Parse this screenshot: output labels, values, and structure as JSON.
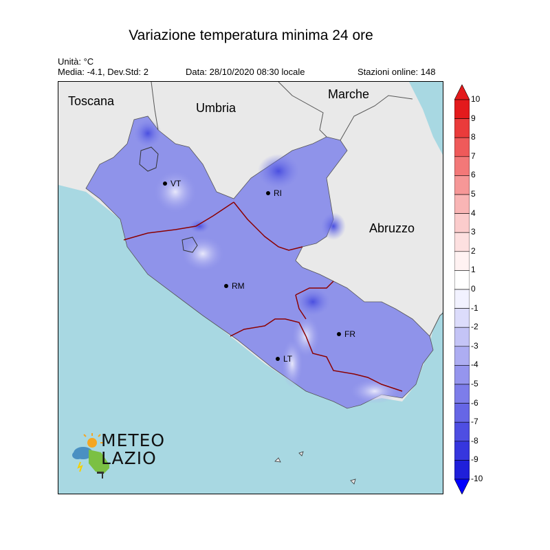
{
  "title": "Variazione temperatura minima 24 ore",
  "unit": "Unità: °C",
  "stats": "Media: -4.1, Dev.Std: 2",
  "date": "Data: 28/10/2020 08:30 locale",
  "stations": "Stazioni online: 148",
  "regions": [
    "Toscana",
    "Umbria",
    "Marche",
    "Abruzzo"
  ],
  "cities": [
    "VT",
    "RI",
    "RM",
    "FR",
    "LT"
  ],
  "logo": {
    "line1": "METEO",
    "line2": "LAZIO"
  },
  "colorbar": {
    "labels": [
      "10",
      "9",
      "8",
      "7",
      "6",
      "5",
      "4",
      "3",
      "2",
      "1",
      "0",
      "-1",
      "-2",
      "-3",
      "-4",
      "-5",
      "-6",
      "-7",
      "-8",
      "-9",
      "-10"
    ],
    "colors": [
      "#e31a1c",
      "#ea3b3b",
      "#ef5a5a",
      "#f37878",
      "#f69797",
      "#f9b5b5",
      "#fbcccc",
      "#fde0e0",
      "#fff2f2",
      "#ffffff",
      "#f2f2ff",
      "#dcdcfb",
      "#c4c4f6",
      "#adadf2",
      "#9595ee",
      "#7d7dea",
      "#6666e6",
      "#4e4ee2",
      "#3636de",
      "#1f1fda"
    ],
    "low_color": "#0000ff",
    "high_color": "#e31a1c"
  },
  "colors": {
    "sea": "#a8d8e2",
    "land": "#e9e9e9",
    "field": "#8f93ea",
    "province_border": "#8b0000"
  }
}
